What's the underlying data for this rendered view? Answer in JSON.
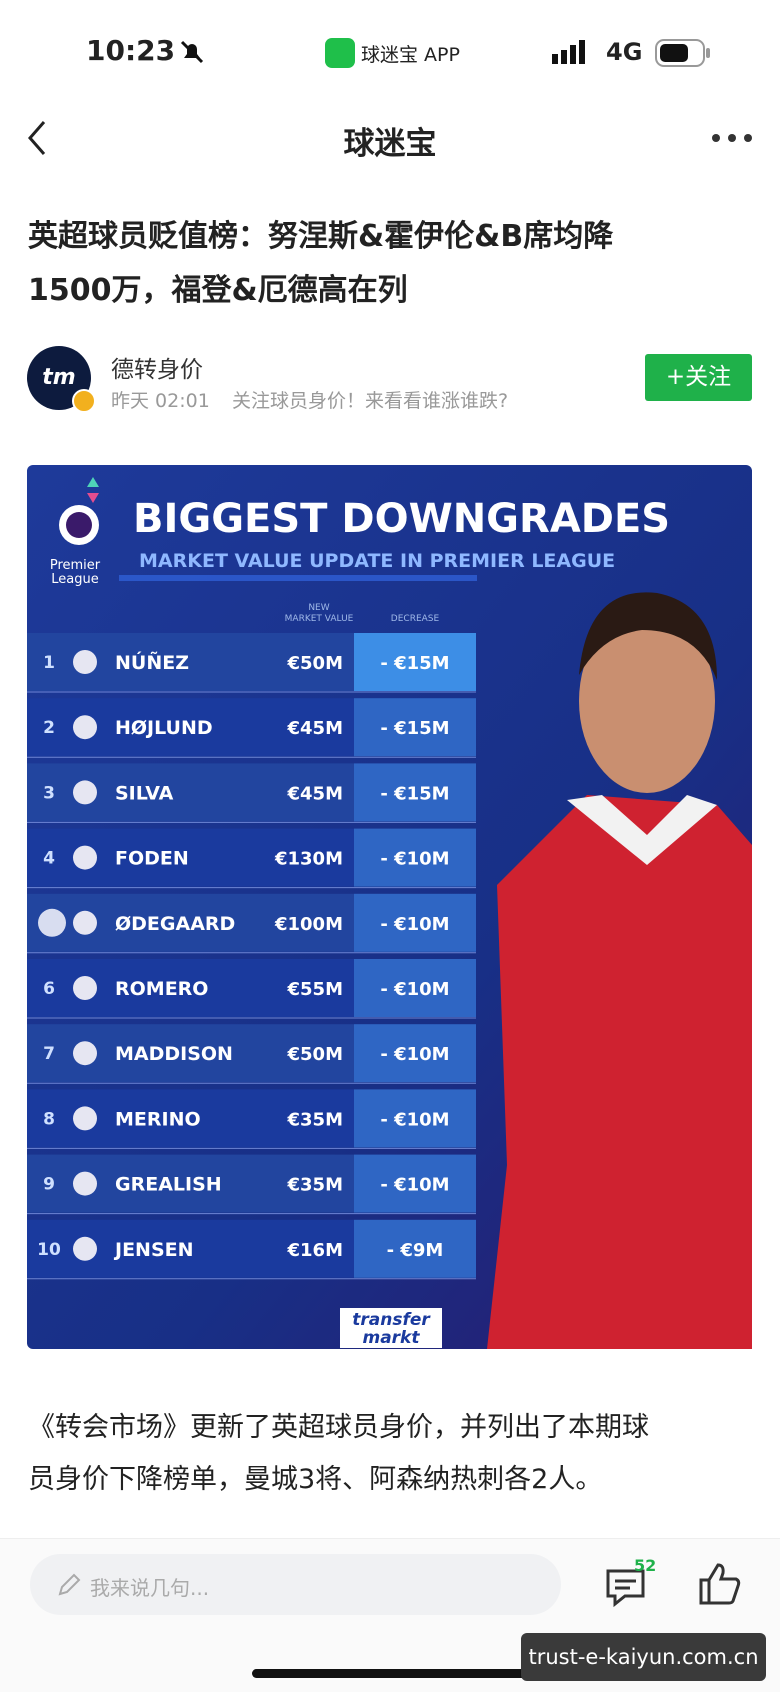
{
  "status_bar": {
    "time": "10:23",
    "app_name": "球迷宝 APP",
    "network": "4G"
  },
  "nav": {
    "title": "球迷宝"
  },
  "article": {
    "title_lines": [
      "英超球员贬值榜：努涅斯&霍伊伦&B席均降",
      "1500万，福登&厄德高在列"
    ],
    "author": "德转身价",
    "avatar_text": "tm",
    "time": "昨天 02:01",
    "tagline": "关注球员身价！来看看谁涨谁跌?",
    "follow": "+关注",
    "body_lines": [
      "《转会市场》更新了英超球员身价，并列出了本期球",
      "员身价下降榜单，曼城3将、阿森纳热刺各2人。"
    ]
  },
  "infographic": {
    "title": "BIGGEST DOWNGRADES",
    "subtitle": "MARKET VALUE UPDATE IN PREMIER LEAGUE",
    "logo_lines": [
      "Premier",
      "League"
    ],
    "header_value_lines": [
      "NEW",
      "MARKET VALUE"
    ],
    "header_decrease": "DECREASE",
    "brand_lines": [
      "transfer",
      "markt"
    ],
    "rows": [
      [
        "1",
        "NÚÑEZ",
        "€50M",
        "- €15M"
      ],
      [
        "2",
        "HØJLUND",
        "€45M",
        "- €15M"
      ],
      [
        "3",
        "SILVA",
        "€45M",
        "- €15M"
      ],
      [
        "4",
        "FODEN",
        "€130M",
        "- €10M"
      ],
      [
        null,
        "ØDEGAARD",
        "€100M",
        "- €10M"
      ],
      [
        "6",
        "ROMERO",
        "€55M",
        "- €10M"
      ],
      [
        "7",
        "MADDISON",
        "€50M",
        "- €10M"
      ],
      [
        "8",
        "MERINO",
        "€35M",
        "- €10M"
      ],
      [
        "9",
        "GREALISH",
        "€35M",
        "- €10M"
      ],
      [
        "10",
        "JENSEN",
        "€16M",
        "- €9M"
      ]
    ]
  },
  "bottom_bar": {
    "placeholder": "我来说几句...",
    "comment_count": "52"
  },
  "watermark": "trust-e-kaiyun.com.cn"
}
